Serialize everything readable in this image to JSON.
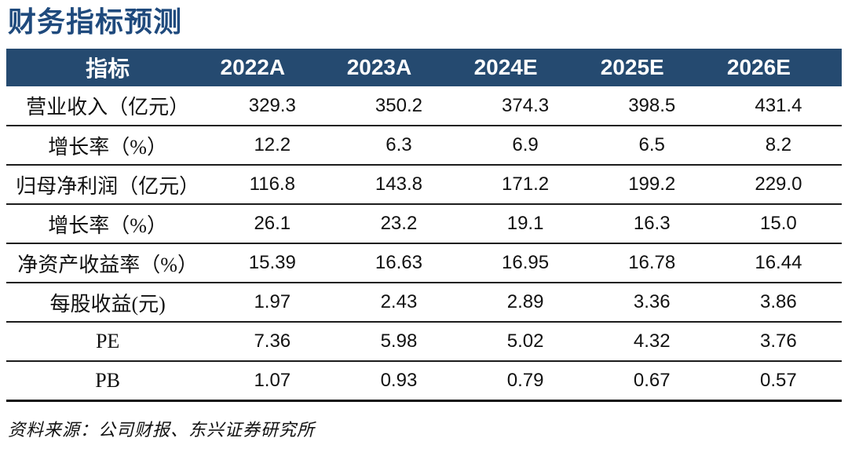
{
  "title": "财务指标预测",
  "colors": {
    "title_navy": "#1F4A7D",
    "header_bg": "#254A70",
    "header_text": "#FFFFFF",
    "row_border": "#1C1C1C",
    "body_text": "#111111"
  },
  "table": {
    "columns": [
      "指标",
      "2022A",
      "2023A",
      "2024E",
      "2025E",
      "2026E"
    ],
    "rows": [
      {
        "label": "营业收入（亿元）",
        "values": [
          "329.3",
          "350.2",
          "374.3",
          "398.5",
          "431.4"
        ]
      },
      {
        "label": "增长率（%）",
        "values": [
          "12.2",
          "6.3",
          "6.9",
          "6.5",
          "8.2"
        ]
      },
      {
        "label": "归母净利润（亿元）",
        "values": [
          "116.8",
          "143.8",
          "171.2",
          "199.2",
          "229.0"
        ]
      },
      {
        "label": "增长率（%）",
        "values": [
          "26.1",
          "23.2",
          "19.1",
          "16.3",
          "15.0"
        ]
      },
      {
        "label": "净资产收益率（%）",
        "values": [
          "15.39",
          "16.63",
          "16.95",
          "16.78",
          "16.44"
        ]
      },
      {
        "label": "每股收益(元)",
        "values": [
          "1.97",
          "2.43",
          "2.89",
          "3.36",
          "3.86"
        ]
      },
      {
        "label": "PE",
        "values": [
          "7.36",
          "5.98",
          "5.02",
          "4.32",
          "3.76"
        ]
      },
      {
        "label": "PB",
        "values": [
          "1.07",
          "0.93",
          "0.79",
          "0.67",
          "0.57"
        ]
      }
    ]
  },
  "footer": {
    "source_text": "资料来源：公司财报、东兴证券研究所"
  }
}
